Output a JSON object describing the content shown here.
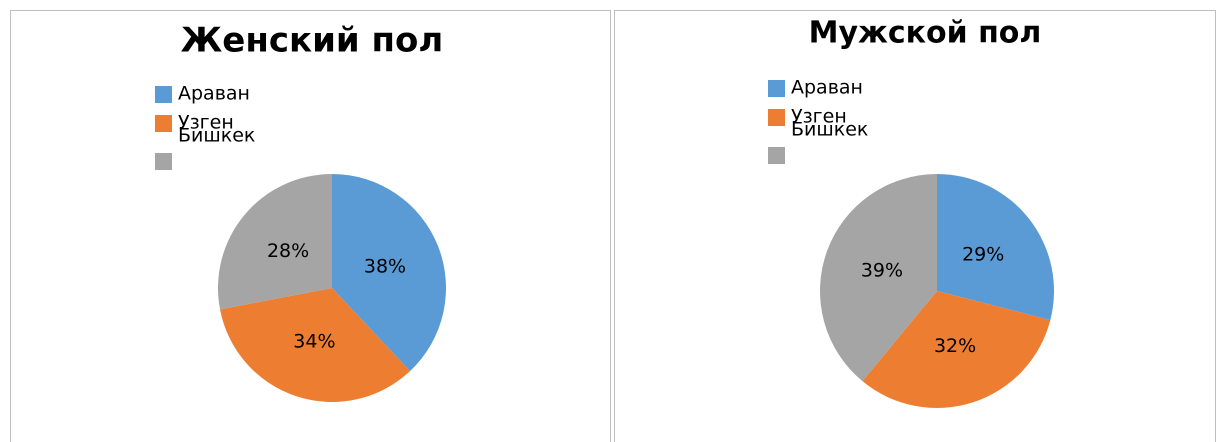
{
  "chart_data": [
    {
      "type": "pie",
      "title": "Женский пол",
      "categories": [
        "Араван",
        "Узген",
        "Бишкек"
      ],
      "values": [
        38,
        34,
        28
      ],
      "value_labels": [
        "38%",
        "34%",
        "28%"
      ],
      "colors": [
        "#5b9bd5",
        "#ed7d31",
        "#a5a5a5"
      ]
    },
    {
      "type": "pie",
      "title": "Мужской пол",
      "categories": [
        "Араван",
        "Узген",
        "Бишкек"
      ],
      "values": [
        29,
        32,
        39
      ],
      "value_labels": [
        "29%",
        "32%",
        "39%"
      ],
      "colors": [
        "#5b9bd5",
        "#ed7d31",
        "#a5a5a5"
      ]
    }
  ]
}
